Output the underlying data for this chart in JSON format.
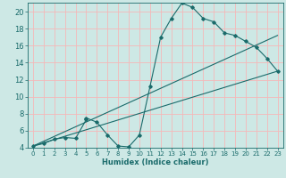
{
  "title": "",
  "xlabel": "Humidex (Indice chaleur)",
  "ylabel": "",
  "xlim": [
    -0.5,
    23.5
  ],
  "ylim": [
    4,
    21
  ],
  "xticks": [
    0,
    1,
    2,
    3,
    4,
    5,
    6,
    7,
    8,
    9,
    10,
    11,
    12,
    13,
    14,
    15,
    16,
    17,
    18,
    19,
    20,
    21,
    22,
    23
  ],
  "yticks": [
    4,
    6,
    8,
    10,
    12,
    14,
    16,
    18,
    20
  ],
  "bg_color": "#cde8e5",
  "line_color": "#1a6b6b",
  "grid_color": "#f5b8b8",
  "line1_x": [
    0,
    1,
    2,
    3,
    4,
    5,
    5,
    6,
    7,
    8,
    9,
    10,
    11,
    12,
    13,
    14,
    15,
    16,
    17,
    18,
    19,
    20,
    21,
    22,
    23
  ],
  "line1_y": [
    4.2,
    4.5,
    5.0,
    5.2,
    5.1,
    7.3,
    7.5,
    7.0,
    5.5,
    4.2,
    4.1,
    5.5,
    11.2,
    17.0,
    19.2,
    21.0,
    20.5,
    19.2,
    18.8,
    17.5,
    17.2,
    16.5,
    15.8,
    14.5,
    13.0
  ],
  "line2_x": [
    0,
    23
  ],
  "line2_y": [
    4.2,
    13.0
  ],
  "line3_x": [
    0,
    23
  ],
  "line3_y": [
    4.2,
    17.2
  ],
  "xlabel_fontsize": 6.0,
  "tick_fontsize_x": 5.0,
  "tick_fontsize_y": 6.0
}
